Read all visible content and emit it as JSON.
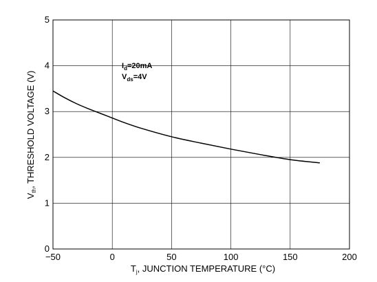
{
  "chart_data": {
    "type": "line",
    "title": "",
    "xlabel": {
      "main": "T",
      "sub": "j",
      "rest": ", JUNCTION TEMPERATURE (°C)"
    },
    "ylabel": {
      "main": "V",
      "sub": "th",
      "rest": ", THRESHOLD VOLTAGE (V)"
    },
    "xlim": [
      -50,
      200
    ],
    "ylim": [
      0,
      5
    ],
    "x_ticks": [
      "−50",
      "0",
      "50",
      "100",
      "150",
      "200"
    ],
    "x_tick_values": [
      -50,
      0,
      50,
      100,
      150,
      200
    ],
    "y_ticks": [
      "0",
      "1",
      "2",
      "3",
      "4",
      "5"
    ],
    "y_tick_values": [
      0,
      1,
      2,
      3,
      4,
      5
    ],
    "grid": true,
    "annotations": [
      {
        "main": "I",
        "sub": "d",
        "rest": "=20mA"
      },
      {
        "main": "V",
        "sub": "ds",
        "rest": "=4V"
      }
    ],
    "series": [
      {
        "x": [
          -50,
          -40,
          -30,
          -20,
          -10,
          0,
          10,
          25,
          50,
          75,
          100,
          125,
          150,
          175
        ],
        "y": [
          3.45,
          3.3,
          3.17,
          3.06,
          2.96,
          2.86,
          2.76,
          2.63,
          2.45,
          2.31,
          2.18,
          2.06,
          1.95,
          1.88
        ]
      }
    ]
  }
}
